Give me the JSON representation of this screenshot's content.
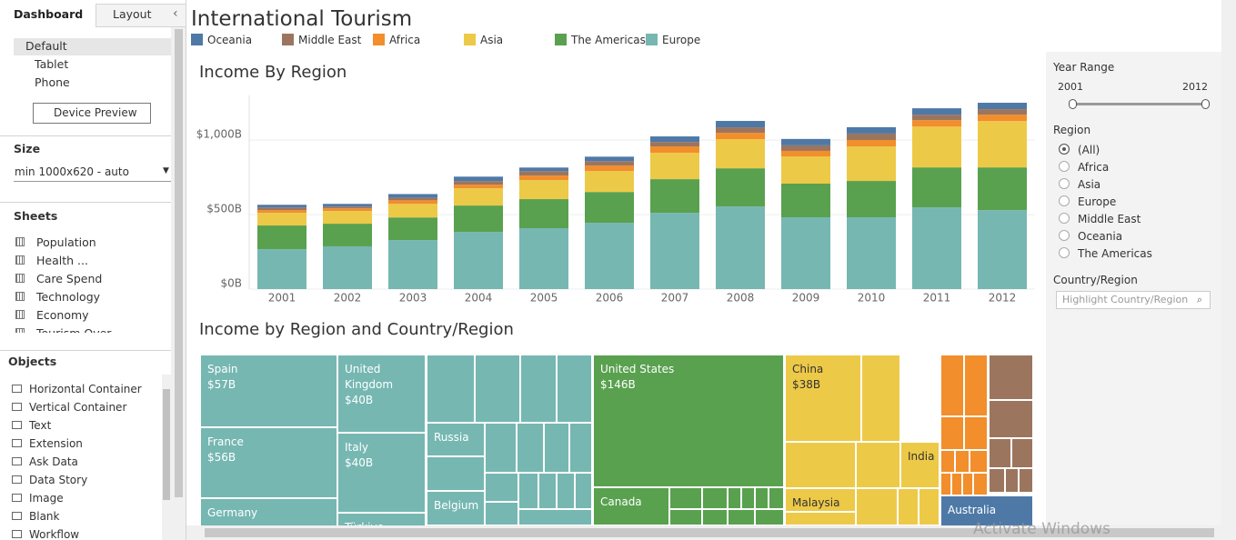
{
  "sidebar": {
    "tabs": [
      "Dashboard",
      "Layout"
    ],
    "devices": [
      "Default",
      "Tablet",
      "Phone"
    ],
    "device_preview": "Device Preview",
    "size_heading": "Size",
    "size_value": "min 1000x620 - auto",
    "sheets_heading": "Sheets",
    "sheets": [
      "Population",
      "Health ...",
      "Care Spend",
      "Technology",
      "Economy",
      "Tourism Over"
    ],
    "objects_heading": "Objects",
    "objects": [
      "Horizontal Container",
      "Vertical Container",
      "Text",
      "Extension",
      "Ask Data",
      "Data Story",
      "Image",
      "Blank",
      "Workflow"
    ]
  },
  "dashboard_title": "International Tourism",
  "chart_data": {
    "type": "bar",
    "stacked": true,
    "title": "Income By Region",
    "categories": [
      "2001",
      "2002",
      "2003",
      "2004",
      "2005",
      "2006",
      "2007",
      "2008",
      "2009",
      "2010",
      "2011",
      "2012"
    ],
    "series": [
      {
        "name": "Oceania",
        "color": "#4e79a7",
        "values": [
          18,
          18,
          24,
          30,
          24,
          30,
          37,
          43,
          43,
          43,
          43,
          43
        ]
      },
      {
        "name": "Middle East",
        "color": "#9c755f",
        "values": [
          18,
          12,
          18,
          24,
          30,
          30,
          30,
          37,
          37,
          43,
          37,
          37
        ]
      },
      {
        "name": "Africa",
        "color": "#f28e2b",
        "values": [
          18,
          18,
          24,
          24,
          30,
          37,
          43,
          43,
          37,
          43,
          43,
          43
        ]
      },
      {
        "name": "Asia",
        "color": "#edc948",
        "values": [
          85,
          85,
          91,
          116,
          128,
          140,
          177,
          195,
          183,
          232,
          274,
          311
        ]
      },
      {
        "name": "The Americas",
        "color": "#59a14f",
        "values": [
          159,
          152,
          152,
          177,
          195,
          207,
          226,
          256,
          226,
          244,
          268,
          287
        ]
      },
      {
        "name": "Europe",
        "color": "#76b7b2",
        "values": [
          268,
          287,
          329,
          384,
          409,
          445,
          512,
          555,
          482,
          482,
          549,
          530
        ]
      }
    ],
    "ylim": [
      0,
      1300
    ],
    "yticks": [
      {
        "value": 0,
        "label": "$0B"
      },
      {
        "value": 500,
        "label": "$500B"
      },
      {
        "value": 1000,
        "label": "$1,000B"
      }
    ],
    "grid": true
  },
  "treemap": {
    "title": "Income by Region and Country/Region",
    "labeled": {
      "names": [
        "Spain",
        "France",
        "United Kingdom",
        "Italy",
        "United States",
        "China"
      ],
      "values": [
        57,
        56,
        40,
        40,
        146,
        38
      ],
      "value_labels": [
        "$57B",
        "$56B",
        "$40B",
        "$40B",
        "$146B",
        "$38B"
      ]
    },
    "unlabeled": [
      "Germany",
      "Türkiye",
      "Russia",
      "Belgium",
      "Canada",
      "India",
      "Malaysia",
      "Australia"
    ]
  },
  "filters": {
    "year_range": {
      "title": "Year Range",
      "start": "2001",
      "end": "2012"
    },
    "region": {
      "title": "Region",
      "options": [
        "(All)",
        "Africa",
        "Asia",
        "Europe",
        "Middle East",
        "Oceania",
        "The Americas"
      ]
    },
    "country": {
      "title": "Country/Region",
      "placeholder": "Highlight Country/Region"
    }
  },
  "watermark": "Activate Windows"
}
